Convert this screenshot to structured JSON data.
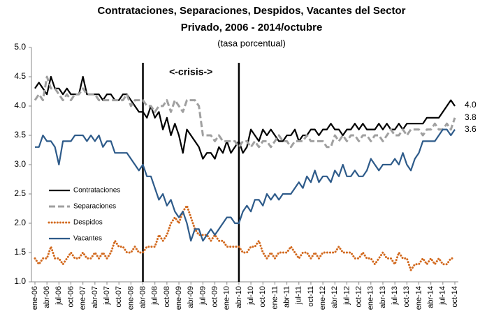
{
  "chart_data": {
    "type": "line",
    "title": [
      "Contrataciones, Separaciones, Despidos, Vacantes del Sector",
      "Privado, 2006 - 2014/octubre"
    ],
    "subtitle": "(tasa porcentual)",
    "crisis": {
      "label": "<-crisis->",
      "from": "abr-08",
      "to": "abr-10"
    },
    "categories": [
      "ene-06",
      null,
      null,
      "abr-06",
      null,
      null,
      "jul-06",
      null,
      null,
      "oct-06",
      null,
      null,
      "ene-07",
      null,
      null,
      "abr-07",
      null,
      null,
      "jul-07",
      null,
      null,
      "oct-07",
      null,
      null,
      "ene-08",
      null,
      null,
      "abr-08",
      null,
      null,
      "jul-08",
      null,
      null,
      "oct-08",
      null,
      null,
      "ene-09",
      null,
      null,
      "abr-09",
      null,
      null,
      "jul-09",
      null,
      null,
      "oct-09",
      null,
      null,
      "ene-10",
      null,
      null,
      "abr-10",
      null,
      null,
      "jul-10",
      null,
      null,
      "oct-10",
      null,
      null,
      "ene-11",
      null,
      null,
      "abr-11",
      null,
      null,
      "jul-11",
      null,
      null,
      "oct-11",
      null,
      null,
      "ene-12",
      null,
      null,
      "abr-12",
      null,
      null,
      "jul-12",
      null,
      null,
      "oct-12",
      null,
      null,
      "ene-13",
      null,
      null,
      "abr-13",
      null,
      null,
      "jul-13",
      null,
      null,
      "oct-13",
      null,
      null,
      "ene-14",
      null,
      null,
      "abr-14",
      null,
      null,
      "jul-14",
      null,
      null,
      "oct-14"
    ],
    "series": [
      {
        "name": "Contrataciones",
        "color": "#000000",
        "dash": "solid",
        "values": [
          4.3,
          4.4,
          4.3,
          4.2,
          4.5,
          4.3,
          4.3,
          4.2,
          4.3,
          4.2,
          4.2,
          4.2,
          4.5,
          4.2,
          4.2,
          4.2,
          4.2,
          4.1,
          4.2,
          4.2,
          4.1,
          4.1,
          4.2,
          4.2,
          4.1,
          4.0,
          3.9,
          3.9,
          3.8,
          4.0,
          3.8,
          3.9,
          3.6,
          3.8,
          3.5,
          3.7,
          3.5,
          3.2,
          3.6,
          3.5,
          3.4,
          3.3,
          3.1,
          3.2,
          3.2,
          3.1,
          3.3,
          3.2,
          3.4,
          3.2,
          3.3,
          3.4,
          3.2,
          3.3,
          3.6,
          3.5,
          3.4,
          3.6,
          3.5,
          3.6,
          3.5,
          3.4,
          3.4,
          3.5,
          3.5,
          3.6,
          3.4,
          3.5,
          3.5,
          3.6,
          3.6,
          3.5,
          3.6,
          3.6,
          3.7,
          3.6,
          3.6,
          3.5,
          3.6,
          3.6,
          3.7,
          3.6,
          3.7,
          3.6,
          3.6,
          3.6,
          3.7,
          3.6,
          3.7,
          3.6,
          3.6,
          3.7,
          3.6,
          3.7,
          3.7,
          3.7,
          3.7,
          3.7,
          3.8,
          3.8,
          3.8,
          3.8,
          3.9,
          4.0,
          4.1,
          4.0
        ],
        "value_labels": [
          null,
          null,
          null,
          null,
          null,
          null,
          null,
          null,
          null,
          null,
          null,
          null,
          null,
          null,
          null,
          null,
          null,
          null,
          null,
          null,
          null,
          null,
          null,
          null,
          null,
          null,
          null,
          null,
          null,
          null,
          null,
          null,
          null,
          null,
          null,
          null,
          null,
          null,
          null,
          null,
          null,
          null,
          null,
          null,
          null,
          null,
          null,
          null,
          null,
          null,
          null,
          null,
          null,
          null,
          null,
          null,
          null,
          null,
          null,
          null,
          null,
          null,
          null,
          null,
          null,
          null,
          null,
          null,
          null,
          null,
          null,
          null,
          null,
          null,
          null,
          null,
          null,
          null,
          null,
          null,
          null,
          null,
          null,
          null,
          null,
          null,
          null,
          null,
          null,
          null,
          null,
          null,
          null,
          null,
          null,
          null,
          null,
          null,
          null,
          null,
          null,
          null,
          null,
          null,
          null,
          "4.0"
        ]
      },
      {
        "name": "Separaciones",
        "color": "#a0a0a0",
        "dash": "dashed",
        "values": [
          4.1,
          4.2,
          4.1,
          4.5,
          4.3,
          4.3,
          4.2,
          4.1,
          4.2,
          4.1,
          4.2,
          4.2,
          4.3,
          4.2,
          4.2,
          4.2,
          4.1,
          4.1,
          4.1,
          4.1,
          4.1,
          4.1,
          4.1,
          4.2,
          4.0,
          4.1,
          4.1,
          4.1,
          4.0,
          4.0,
          3.9,
          4.0,
          4.0,
          4.1,
          3.9,
          4.1,
          4.0,
          3.9,
          4.1,
          4.1,
          4.1,
          4.0,
          3.5,
          3.5,
          3.5,
          3.4,
          3.5,
          3.4,
          3.4,
          3.4,
          3.4,
          3.3,
          3.4,
          3.4,
          3.3,
          3.4,
          3.3,
          3.4,
          3.4,
          3.3,
          3.4,
          3.5,
          3.4,
          3.4,
          3.3,
          3.4,
          3.4,
          3.4,
          3.5,
          3.4,
          3.4,
          3.4,
          3.4,
          3.3,
          3.3,
          3.5,
          3.4,
          3.5,
          3.4,
          3.5,
          3.5,
          3.4,
          3.5,
          3.5,
          3.4,
          3.5,
          3.5,
          3.4,
          3.5,
          3.6,
          3.5,
          3.5,
          3.6,
          3.5,
          3.6,
          3.6,
          3.6,
          3.5,
          3.6,
          3.6,
          3.7,
          3.6,
          3.6,
          3.7,
          3.6,
          3.8
        ],
        "value_labels": [
          null,
          null,
          null,
          null,
          null,
          null,
          null,
          null,
          null,
          null,
          null,
          null,
          null,
          null,
          null,
          null,
          null,
          null,
          null,
          null,
          null,
          null,
          null,
          null,
          null,
          null,
          null,
          null,
          null,
          null,
          null,
          null,
          null,
          null,
          null,
          null,
          null,
          null,
          null,
          null,
          null,
          null,
          null,
          null,
          null,
          null,
          null,
          null,
          null,
          null,
          null,
          null,
          null,
          null,
          null,
          null,
          null,
          null,
          null,
          null,
          null,
          null,
          null,
          null,
          null,
          null,
          null,
          null,
          null,
          null,
          null,
          null,
          null,
          null,
          null,
          null,
          null,
          null,
          null,
          null,
          null,
          null,
          null,
          null,
          null,
          null,
          null,
          null,
          null,
          null,
          null,
          null,
          null,
          null,
          null,
          null,
          null,
          null,
          null,
          null,
          null,
          null,
          null,
          null,
          null,
          "3.8"
        ]
      },
      {
        "name": "Despidos",
        "color": "#d2691e",
        "dash": "dotted",
        "values": [
          1.4,
          1.3,
          1.4,
          1.4,
          1.6,
          1.4,
          1.4,
          1.3,
          1.4,
          1.5,
          1.4,
          1.4,
          1.5,
          1.4,
          1.4,
          1.5,
          1.4,
          1.5,
          1.4,
          1.5,
          1.7,
          1.6,
          1.6,
          1.5,
          1.5,
          1.6,
          1.5,
          1.5,
          1.6,
          1.6,
          1.6,
          1.8,
          1.7,
          1.8,
          2.0,
          2.1,
          2.0,
          2.2,
          2.3,
          2.1,
          1.9,
          1.8,
          1.8,
          1.8,
          1.7,
          1.8,
          1.7,
          1.7,
          1.6,
          1.6,
          1.6,
          1.6,
          1.5,
          1.5,
          1.6,
          1.6,
          1.7,
          1.5,
          1.4,
          1.5,
          1.4,
          1.5,
          1.5,
          1.5,
          1.6,
          1.5,
          1.4,
          1.5,
          1.5,
          1.4,
          1.5,
          1.4,
          1.5,
          1.5,
          1.5,
          1.5,
          1.6,
          1.5,
          1.5,
          1.5,
          1.4,
          1.4,
          1.5,
          1.4,
          1.4,
          1.3,
          1.4,
          1.5,
          1.4,
          1.4,
          1.3,
          1.5,
          1.4,
          1.4,
          1.2,
          1.3,
          1.3,
          1.4,
          1.3,
          1.4,
          1.3,
          1.4,
          1.3,
          1.3,
          1.4,
          1.4
        ]
      },
      {
        "name": "Vacantes",
        "color": "#2e5b8a",
        "dash": "solid",
        "values": [
          3.3,
          3.3,
          3.5,
          3.4,
          3.4,
          3.3,
          3.0,
          3.4,
          3.4,
          3.4,
          3.5,
          3.5,
          3.5,
          3.4,
          3.5,
          3.4,
          3.5,
          3.3,
          3.4,
          3.4,
          3.2,
          3.2,
          3.2,
          3.2,
          3.1,
          3.0,
          2.9,
          3.0,
          2.8,
          2.8,
          2.6,
          2.4,
          2.5,
          2.3,
          2.4,
          2.2,
          2.1,
          2.2,
          2.0,
          1.7,
          1.9,
          1.9,
          1.7,
          1.8,
          1.9,
          1.8,
          1.9,
          2.0,
          2.1,
          2.1,
          2.0,
          2.0,
          2.2,
          2.3,
          2.2,
          2.4,
          2.4,
          2.3,
          2.5,
          2.4,
          2.5,
          2.4,
          2.5,
          2.5,
          2.5,
          2.6,
          2.7,
          2.6,
          2.8,
          2.7,
          2.9,
          2.7,
          2.8,
          2.8,
          2.7,
          2.9,
          2.8,
          3.0,
          2.8,
          2.8,
          2.9,
          2.8,
          2.8,
          2.9,
          3.1,
          3.0,
          2.9,
          3.0,
          3.0,
          3.0,
          3.1,
          3.0,
          3.2,
          3.0,
          2.9,
          3.1,
          3.2,
          3.4,
          3.4,
          3.4,
          3.4,
          3.5,
          3.6,
          3.6,
          3.5,
          3.6
        ],
        "value_labels": [
          null,
          null,
          null,
          null,
          null,
          null,
          null,
          null,
          null,
          null,
          null,
          null,
          null,
          null,
          null,
          null,
          null,
          null,
          null,
          null,
          null,
          null,
          null,
          null,
          null,
          null,
          null,
          null,
          null,
          null,
          null,
          null,
          null,
          null,
          null,
          null,
          null,
          null,
          null,
          null,
          null,
          null,
          null,
          null,
          null,
          null,
          null,
          null,
          null,
          null,
          null,
          null,
          null,
          null,
          null,
          null,
          null,
          null,
          null,
          null,
          null,
          null,
          null,
          null,
          null,
          null,
          null,
          null,
          null,
          null,
          null,
          null,
          null,
          null,
          null,
          null,
          null,
          null,
          null,
          null,
          null,
          null,
          null,
          null,
          null,
          null,
          null,
          null,
          null,
          null,
          null,
          null,
          null,
          null,
          null,
          null,
          null,
          null,
          null,
          null,
          null,
          null,
          null,
          null,
          null,
          "3.6"
        ]
      }
    ],
    "ylim": [
      1,
      5
    ],
    "yticks": [
      {
        "value": 1,
        "label": "1.0"
      },
      {
        "value": 1.5,
        "label": "1.5"
      },
      {
        "value": 2,
        "label": "2.0"
      },
      {
        "value": 2.5,
        "label": "2.5"
      },
      {
        "value": 3,
        "label": "3.0"
      },
      {
        "value": 3.5,
        "label": "3.5"
      },
      {
        "value": 4,
        "label": "4.0"
      },
      {
        "value": 4.5,
        "label": "4.5"
      },
      {
        "value": 5,
        "label": "5.0"
      }
    ],
    "grid": false,
    "legend": "left"
  }
}
